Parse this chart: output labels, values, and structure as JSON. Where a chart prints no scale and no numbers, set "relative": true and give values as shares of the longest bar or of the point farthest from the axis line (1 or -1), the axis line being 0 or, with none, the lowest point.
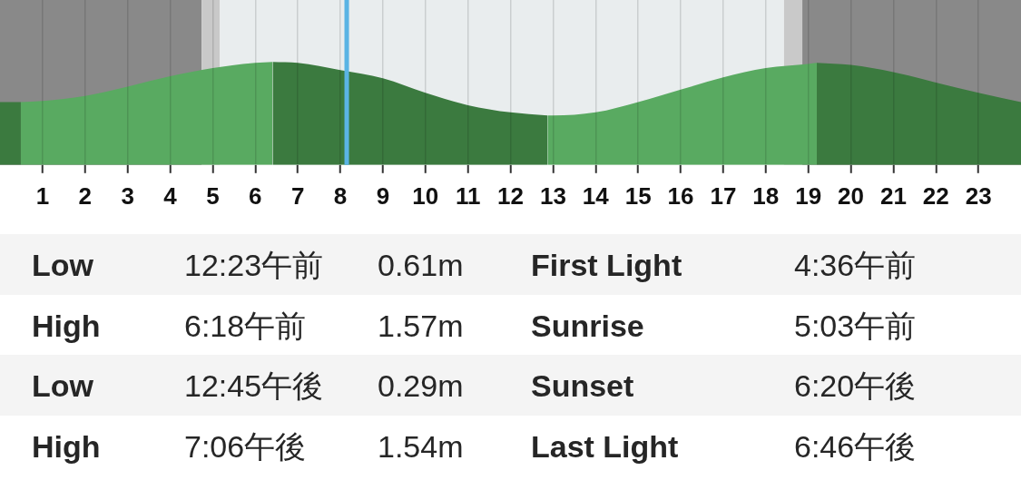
{
  "chart_data": [
    {
      "type": "area",
      "relative": true,
      "xlim": [
        0,
        24
      ],
      "xticks": [
        1,
        2,
        3,
        4,
        5,
        6,
        7,
        8,
        9,
        10,
        11,
        12,
        13,
        14,
        15,
        16,
        17,
        18,
        19,
        20,
        21,
        22,
        23
      ],
      "grid": "x",
      "series": [
        {
          "color": "#3b7a3f",
          "x": [
            0,
            0.49,
            3,
            6.41,
            7,
            8,
            9,
            10,
            11,
            12,
            12.87,
            16,
            19.2,
            20,
            21,
            22,
            23,
            24
          ],
          "values": [
            0.61,
            0.61,
            null,
            1,
            0.99,
            0.92,
            0.84,
            0.7,
            0.58,
            0.51,
            0.48,
            null,
            0.99,
            0.97,
            0.9,
            0.8,
            0.7,
            0.61
          ]
        },
        {
          "color": "#59aa61",
          "x": [
            0.49,
            1,
            2,
            3,
            4,
            5,
            6,
            6.41,
            9,
            12.87,
            13,
            14,
            15,
            16,
            17,
            18,
            19,
            19.2
          ],
          "values": [
            0.61,
            0.62,
            0.67,
            0.76,
            0.86,
            0.94,
            0.99,
            1,
            null,
            0.48,
            0.48,
            0.51,
            0.61,
            0.73,
            0.85,
            0.94,
            0.98,
            0.99
          ]
        }
      ],
      "bands": [
        {
          "axis": "x",
          "from": 0,
          "to": 4.74,
          "color": "#898989"
        },
        {
          "axis": "x",
          "from": 4.74,
          "to": 5.17,
          "color": "#c9c9c9"
        },
        {
          "axis": "x",
          "from": 5.17,
          "to": 18.43,
          "color": "#e9edee"
        },
        {
          "axis": "x",
          "from": 18.43,
          "to": 18.86,
          "color": "#c9c9c9"
        },
        {
          "axis": "x",
          "from": 18.86,
          "to": 24,
          "color": "#898989"
        }
      ],
      "ref_lines": [
        {
          "axis": "x",
          "value": 8.15,
          "color": "#5ab4e4"
        }
      ]
    },
    {
      "type": "other",
      "annotations": [
        "Low",
        "12:23午前",
        "0.61m",
        "First Light",
        "4:36午前",
        "High",
        "6:18午前",
        "1.57m",
        "Sunrise",
        "5:03午前",
        "Low",
        "12:45午後",
        "0.29m",
        "Sunset",
        "6:20午後",
        "High",
        "7:06午後",
        "1.54m",
        "Last Light",
        "6:46午後"
      ]
    }
  ]
}
